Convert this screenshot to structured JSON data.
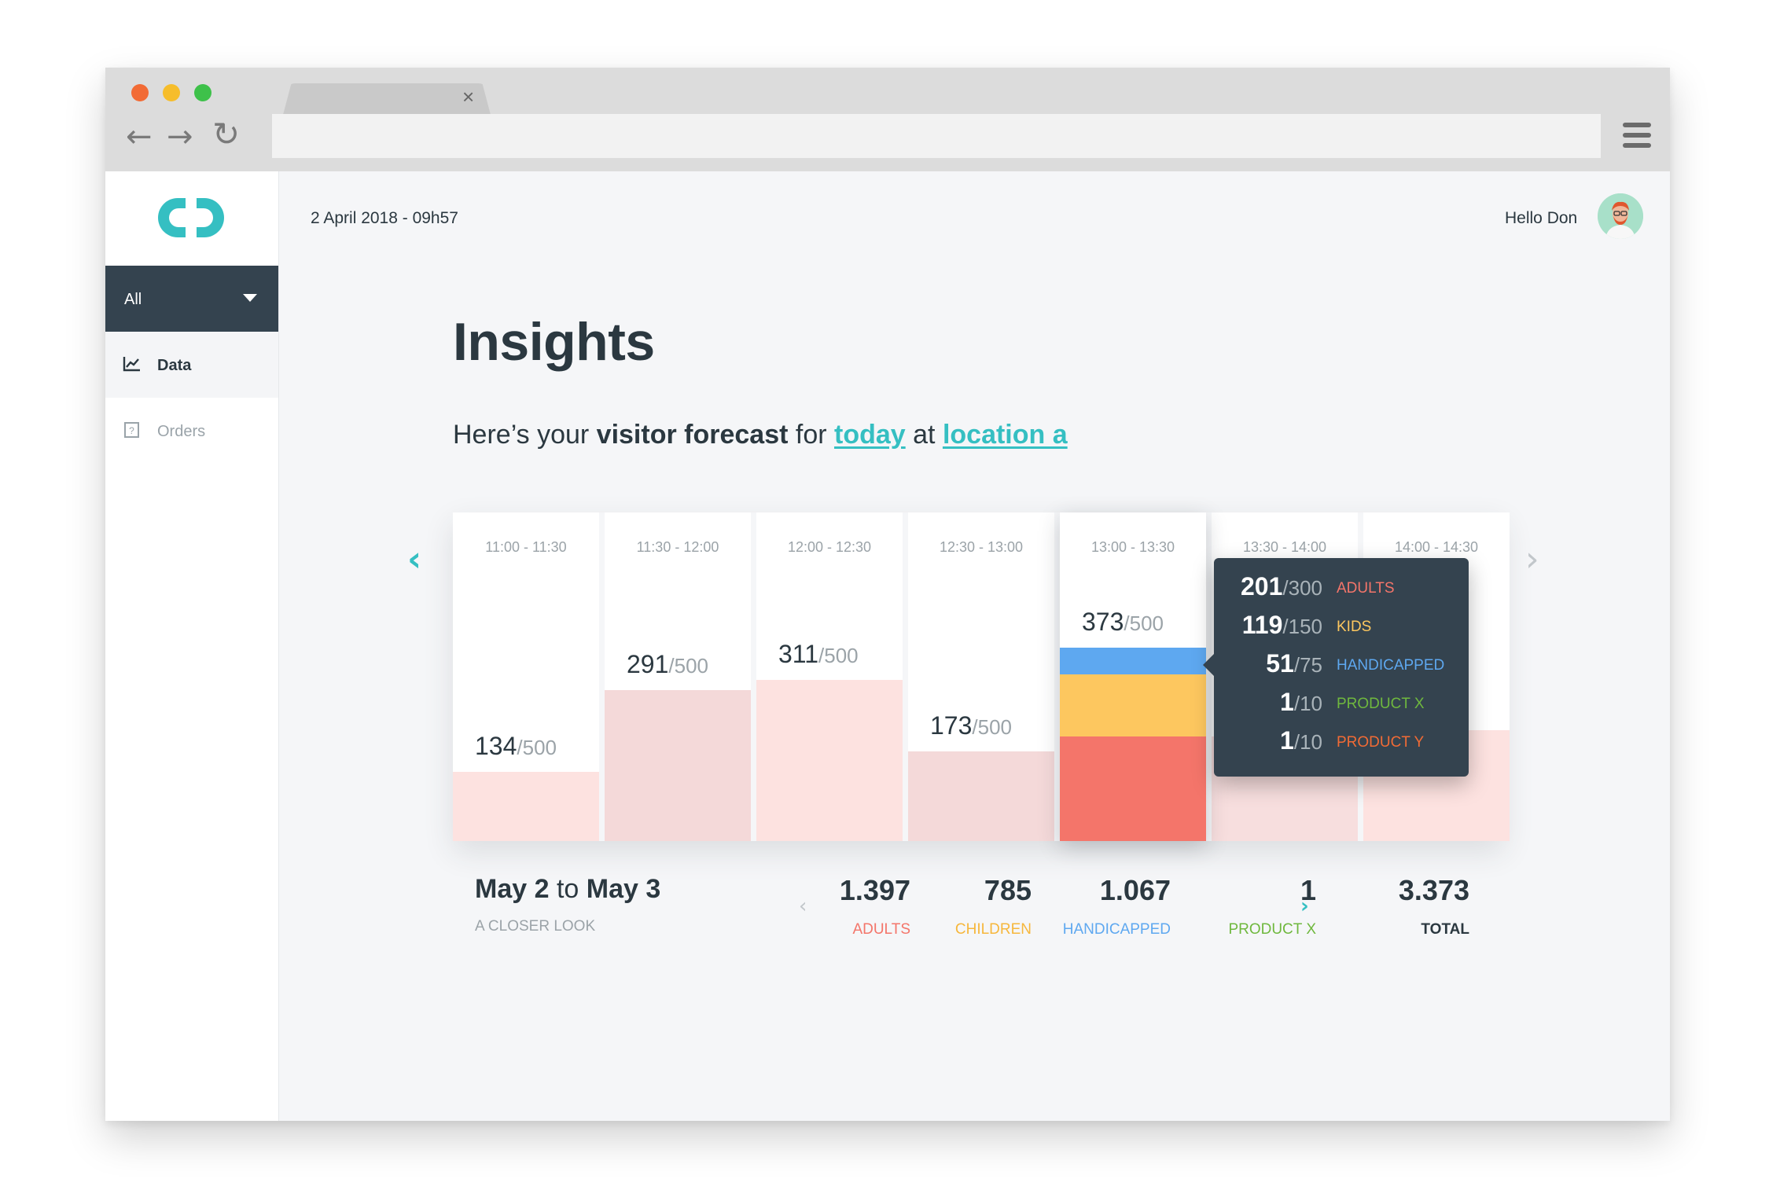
{
  "browser": {
    "tab_close": "×",
    "back_icon": "←",
    "forward_icon": "→",
    "reload_icon": "↻"
  },
  "sidebar": {
    "filter": "All",
    "items": [
      {
        "label": "Data",
        "icon": "chart-icon",
        "active": true
      },
      {
        "label": "Orders",
        "icon": "question-box-icon",
        "active": false
      }
    ]
  },
  "header": {
    "datetime": "2 April 2018 - 09h57",
    "greeting": "Hello Don"
  },
  "main": {
    "title": "Insights",
    "subtitle": {
      "prefix": "Here’s your ",
      "bold": "visitor forecast",
      "mid1": " for ",
      "link1": "today",
      "mid2": " at ",
      "link2": "location a"
    },
    "prev_icon": "‹",
    "next_icon": "›"
  },
  "colors": {
    "accent": "#35bfc2",
    "adults": "#f4756a",
    "kids": "#fdc75f",
    "handicapped": "#5ea8f0",
    "product_x": "#6fb83e",
    "product_y": "#f26b35",
    "dark": "#34434f"
  },
  "chart_data": {
    "type": "bar",
    "categories": [
      "11:00 - 11:30",
      "11:30 - 12:00",
      "12:00 - 12:30",
      "12:30 - 13:00",
      "13:00 - 13:30",
      "13:30 - 14:00",
      "14:00 - 14:30"
    ],
    "values": [
      134,
      291,
      311,
      173,
      373,
      202,
      213
    ],
    "capacity": 500,
    "max_label": "/500",
    "selected_index": 4,
    "visible_value_labels": [
      "134",
      "291",
      "311",
      "173",
      "373",
      "",
      ""
    ],
    "selected_breakdown": [
      {
        "label": "ADULTS",
        "value": 201,
        "max": "/300",
        "color": "#f4756a"
      },
      {
        "label": "KIDS",
        "value": 119,
        "max": "/150",
        "color": "#fdc75f"
      },
      {
        "label": "HANDICAPPED",
        "value": 51,
        "max": "/75",
        "color": "#5ea8f0"
      },
      {
        "label": "PRODUCT X",
        "value": 1,
        "max": "/10",
        "color": "#6fb83e"
      },
      {
        "label": "PRODUCT Y",
        "value": 1,
        "max": "/10",
        "color": "#f26b35"
      }
    ]
  },
  "summary": {
    "range_from": "May 2",
    "range_to_word": " to ",
    "range_to": "May 3",
    "subtitle": "A CLOSER LOOK",
    "prev_icon": "‹",
    "next_icon": "›",
    "stats": [
      {
        "value": "1.397",
        "label": "ADULTS",
        "color": "#f4756a"
      },
      {
        "value": "785",
        "label": "CHILDREN",
        "color": "#f6b73c"
      },
      {
        "value": "1.067",
        "label": "HANDICAPPED",
        "color": "#5ea8f0"
      },
      {
        "value": "1",
        "label": "PRODUCT X",
        "color": "#6fb83e"
      }
    ],
    "total": {
      "value": "3.373",
      "label": "TOTAL",
      "color": "#2b3840"
    }
  }
}
